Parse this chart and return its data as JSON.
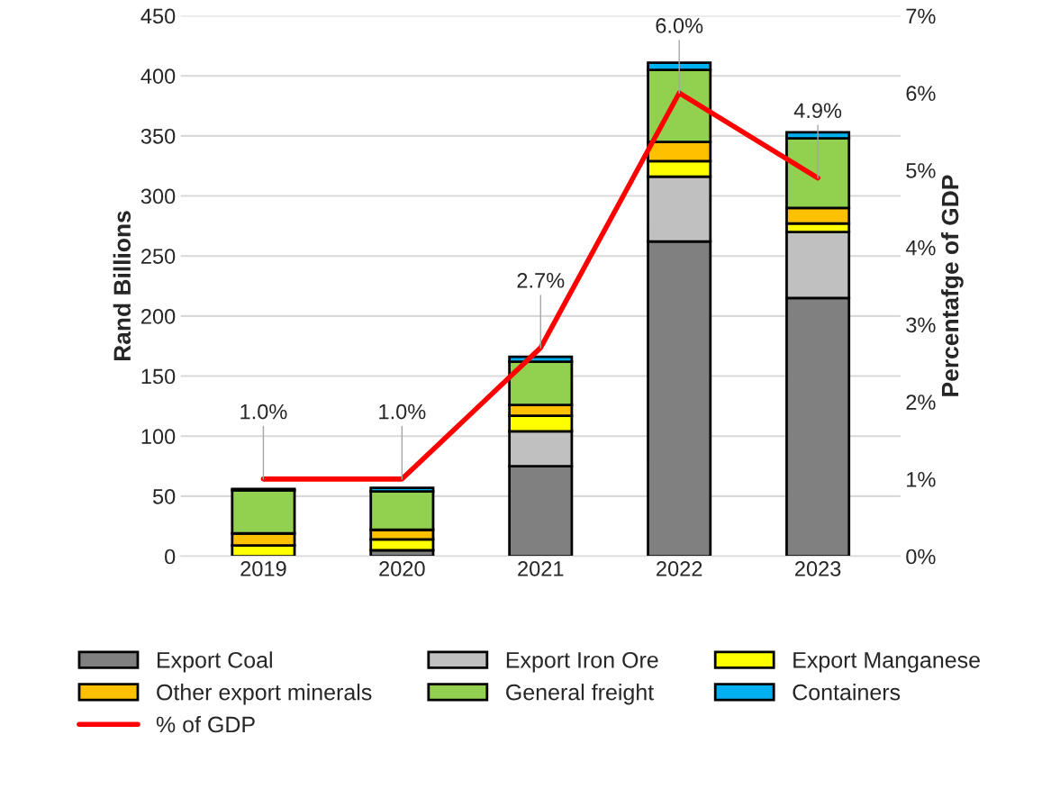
{
  "chart_data": {
    "type": "bar",
    "stacked": true,
    "ylabel": "Rand Billions",
    "y2label": "Percentafge of GDP",
    "categories": [
      "2019",
      "2020",
      "2021",
      "2022",
      "2023"
    ],
    "series": [
      {
        "name": "Export Coal",
        "color": "#808080",
        "values": [
          0,
          5,
          75,
          262,
          215
        ]
      },
      {
        "name": "Export Iron Ore",
        "color": "#c0c0c0",
        "values": [
          0,
          null,
          29,
          54,
          55
        ]
      },
      {
        "name": "Export Manganese",
        "color": "#ffff00",
        "values": [
          9,
          9,
          13,
          13,
          7
        ]
      },
      {
        "name": "Other export minerals",
        "color": "#ffc000",
        "values": [
          10,
          8,
          9,
          16,
          13
        ]
      },
      {
        "name": "General freight",
        "color": "#92d050",
        "values": [
          36,
          32,
          36,
          60,
          58
        ]
      },
      {
        "name": "Containers",
        "color": "#00b0f0",
        "values": [
          1,
          3,
          4,
          6,
          5
        ]
      },
      {
        "name": "% of GDP",
        "type": "line",
        "axis": "y2",
        "color": "#ff0000",
        "values": [
          1.0,
          1.0,
          2.7,
          6.0,
          4.9
        ],
        "value_labels": [
          "1.0%",
          "1.0%",
          "2.7%",
          "6.0%",
          "4.9%"
        ]
      }
    ],
    "ylim": [
      0,
      450
    ],
    "yticks": [
      0,
      50,
      100,
      150,
      200,
      250,
      300,
      350,
      400,
      450
    ],
    "y2lim": [
      0,
      7
    ],
    "y2ticks": [
      {
        "value": 0,
        "label": "0%"
      },
      {
        "value": 1,
        "label": "1%"
      },
      {
        "value": 2,
        "label": "2%"
      },
      {
        "value": 3,
        "label": "3%"
      },
      {
        "value": 4,
        "label": "4%"
      },
      {
        "value": 5,
        "label": "5%"
      },
      {
        "value": 6,
        "label": "6%"
      },
      {
        "value": 7,
        "label": "7%"
      }
    ],
    "grid": "y",
    "legend": "bottom"
  }
}
